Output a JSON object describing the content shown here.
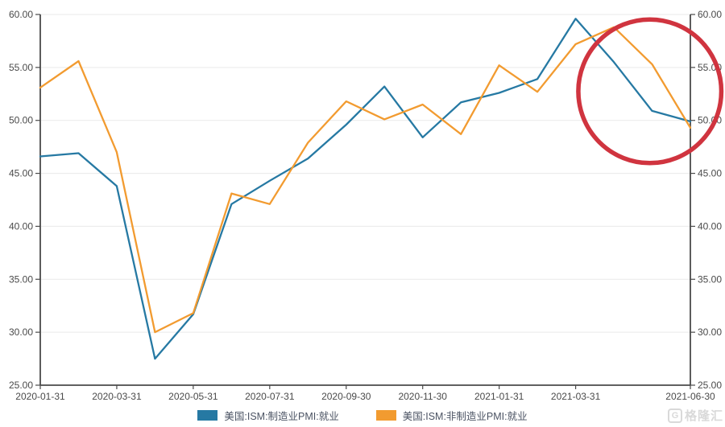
{
  "chart_data": {
    "type": "line",
    "title": "",
    "x": [
      "2020-01-31",
      "2020-02-29",
      "2020-03-31",
      "2020-04-30",
      "2020-05-31",
      "2020-06-30",
      "2020-07-31",
      "2020-08-31",
      "2020-09-30",
      "2020-10-31",
      "2020-11-30",
      "2020-12-31",
      "2021-01-31",
      "2021-02-28",
      "2021-03-31",
      "2021-04-30",
      "2021-05-31",
      "2021-06-30"
    ],
    "x_tick_labels": [
      "2020-01-31",
      "2020-03-31",
      "2020-05-31",
      "2020-07-31",
      "2020-09-30",
      "2020-11-30",
      "2021-01-31",
      "2021-03-31",
      "2021-06-30"
    ],
    "x_tick_indices": [
      0,
      2,
      4,
      6,
      8,
      10,
      12,
      14,
      17
    ],
    "y_ticks": [
      25,
      30,
      35,
      40,
      45,
      50,
      55,
      60
    ],
    "y_tick_format_decimals": 2,
    "ylim": [
      25,
      60
    ],
    "grid": true,
    "dual_y_axis": true,
    "legend_position": "bottom",
    "axis_color": "#4a4a4a",
    "grid_color": "#e9e9e9",
    "series": [
      {
        "name": "美国:ISM:制造业PMI:就业",
        "color": "#2679a3",
        "values": [
          46.6,
          46.9,
          43.8,
          27.5,
          31.7,
          42.1,
          44.3,
          46.4,
          49.6,
          53.2,
          48.4,
          51.7,
          52.6,
          53.9,
          59.6,
          55.5,
          50.9,
          49.9
        ]
      },
      {
        "name": "美国:ISM:非制造业PMI:就业",
        "color": "#f29b30",
        "values": [
          53.1,
          55.6,
          47.0,
          30.0,
          31.8,
          43.1,
          42.1,
          47.9,
          51.8,
          50.1,
          51.5,
          48.7,
          55.2,
          52.7,
          57.2,
          58.8,
          55.3,
          49.3
        ]
      }
    ],
    "annotation_circle": {
      "shape": "ellipse",
      "color": "#d0343f",
      "center_x_index": 15.94,
      "center_y_value": 52.75,
      "rx_months": 1.87,
      "ry_values": 6.78
    }
  },
  "legend": {
    "items": [
      {
        "label": "美国:ISM:制造业PMI:就业"
      },
      {
        "label": "美国:ISM:非制造业PMI:就业"
      }
    ]
  },
  "watermark": {
    "icon_letter": "G",
    "text": "格隆汇"
  }
}
